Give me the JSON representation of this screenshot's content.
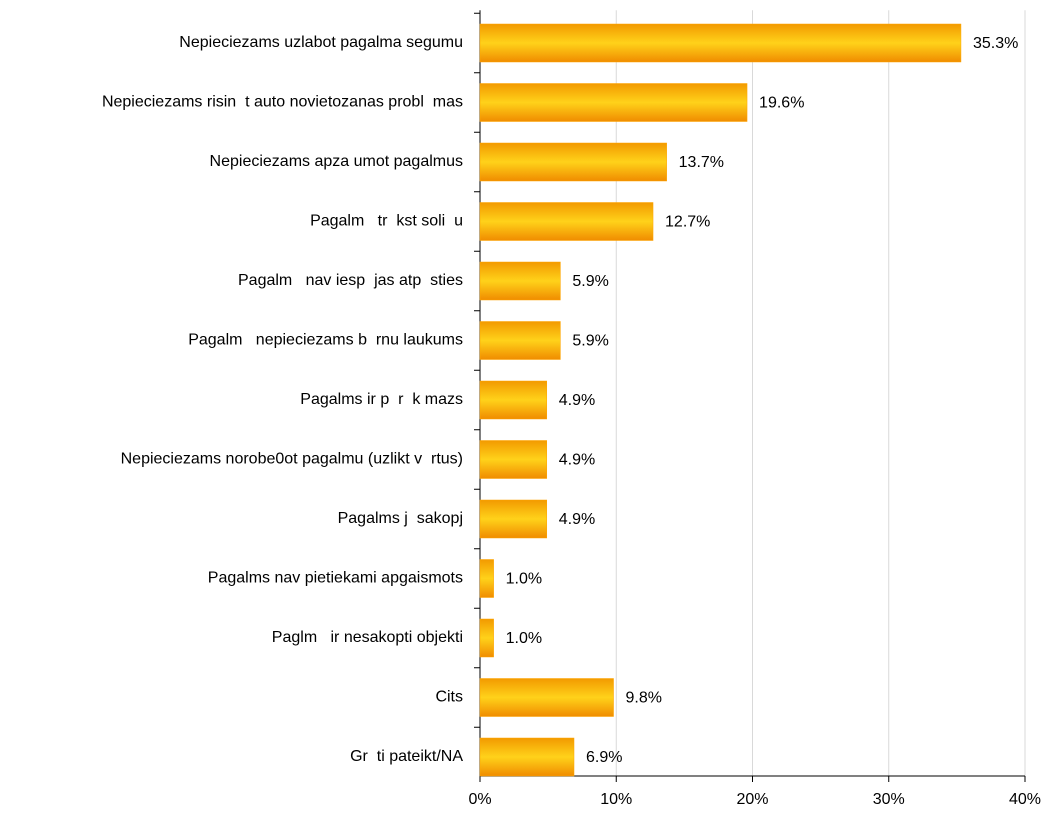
{
  "chart_data": {
    "type": "hbar",
    "categories": [
      "Nepieciezams uzlabot pagalma segumu",
      "Nepieciezams risin  t auto novietozanas probl  mas",
      "Nepieciezams apza umot pagalmus",
      "Pagalm   tr  kst soli  u",
      "Pagalm   nav iesp  jas atp  sties",
      "Pagalm   nepieciezams b  rnu laukums",
      "Pagalms ir p  r  k mazs",
      "Nepieciezams norobe0ot pagalmu (uzlikt v  rtus)",
      "Pagalms j  sakopj",
      "Pagalms nav pietiekami apgaismots",
      "Paglm   ir nesakopti objekti",
      "Cits",
      "Gr  ti pateikt/NA"
    ],
    "values": [
      35.3,
      19.6,
      13.7,
      12.7,
      5.9,
      5.9,
      4.9,
      4.9,
      4.9,
      1.0,
      1.0,
      9.8,
      6.9
    ],
    "value_labels": [
      "35.3%",
      "19.6%",
      "13.7%",
      "12.7%",
      "5.9%",
      "5.9%",
      "4.9%",
      "4.9%",
      "4.9%",
      "1.0%",
      "1.0%",
      "9.8%",
      "6.9%"
    ],
    "color": "#ffa500",
    "xlim": [
      0,
      40
    ],
    "xticks": [
      {
        "value": 0,
        "label": "0%"
      },
      {
        "value": 10,
        "label": "10%"
      },
      {
        "value": 20,
        "label": "20%"
      },
      {
        "value": 30,
        "label": "30%"
      },
      {
        "value": 40,
        "label": "40%"
      }
    ],
    "grid": true
  }
}
